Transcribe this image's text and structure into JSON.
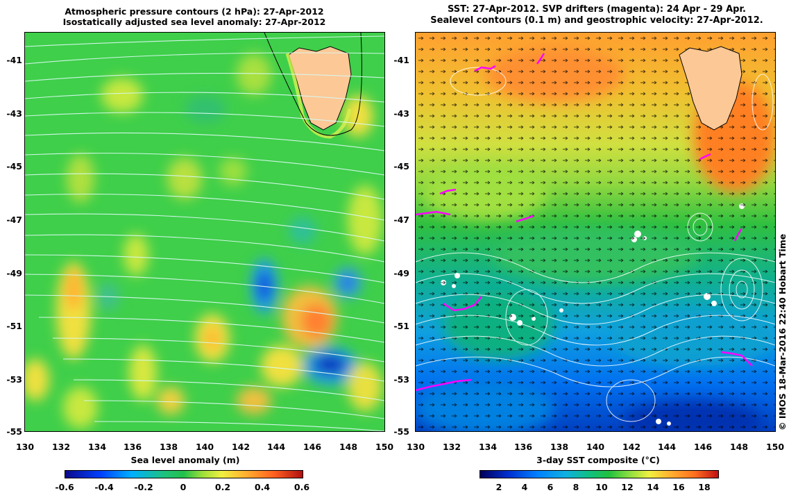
{
  "left_panel": {
    "title_line1": "Atmospheric pressure contours (2 hPa): 27-Apr-2012",
    "title_line2": "Isostatically adjusted sea level anomaly: 27-Apr-2012",
    "colorbar_label": "Sea level anomaly (m)",
    "colorbar_ticks": [
      "-0.6",
      "-0.4",
      "-0.2",
      "0",
      "0.2",
      "0.4",
      "0.6"
    ],
    "colorbar_range": [
      -0.6,
      0.6
    ]
  },
  "right_panel": {
    "title_line1": "SST: 27-Apr-2012. SVP drifters (magenta): 24 Apr - 29 Apr.",
    "title_line2": "Sealevel contours (0.1 m) and geostrophic velocity: 27-Apr-2012.",
    "colorbar_label": "3-day SST composite (°C)",
    "colorbar_ticks": [
      "2",
      "4",
      "6",
      "8",
      "10",
      "12",
      "14",
      "16",
      "18"
    ],
    "colorbar_range": [
      1,
      19.5
    ]
  },
  "axes": {
    "x_ticks": [
      "130",
      "132",
      "134",
      "136",
      "138",
      "140",
      "142",
      "144",
      "146",
      "148",
      "150"
    ],
    "y_ticks": [
      "-41",
      "-43",
      "-45",
      "-47",
      "-49",
      "-51",
      "-53",
      "-55"
    ],
    "x_range": [
      130,
      150
    ],
    "y_range": [
      -55,
      -40.2
    ]
  },
  "credit": "© IMOS 18-Mar-2016 22:40 Hobart Time",
  "colors": {
    "land": "#fcc896",
    "drifter": "#ff00ff",
    "contour": "#ffffff"
  }
}
